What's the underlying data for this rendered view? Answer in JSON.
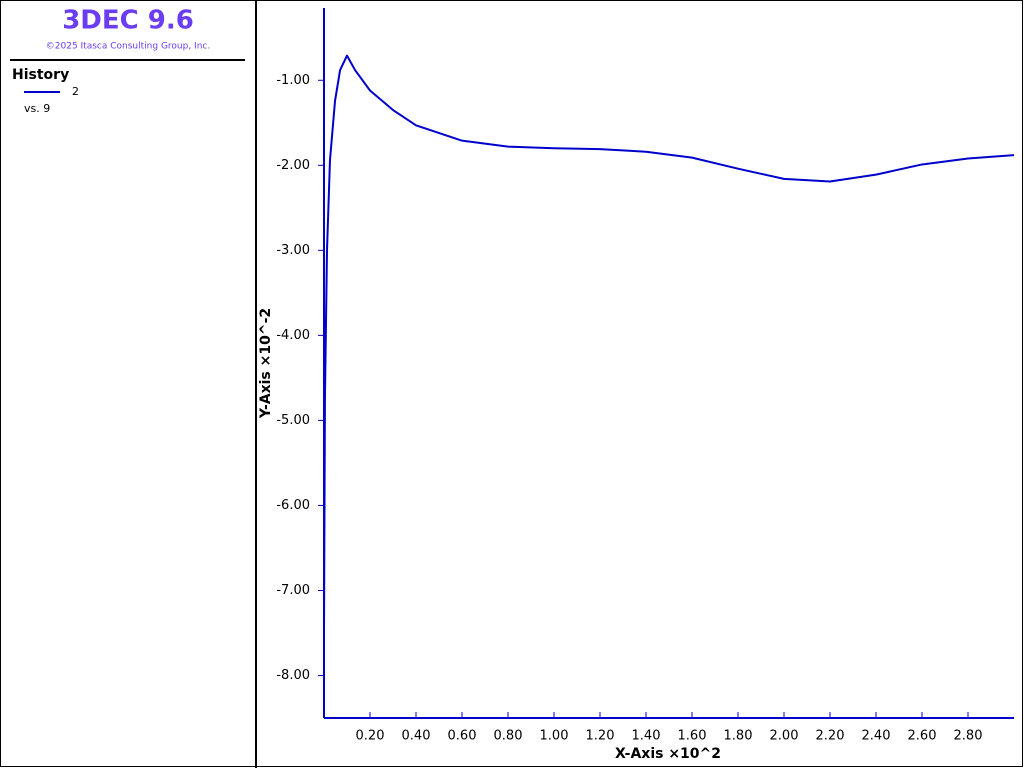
{
  "header": {
    "title": "3DEC 9.6",
    "copyright": "©2025 Itasca Consulting Group, Inc."
  },
  "legend": {
    "heading": "History",
    "note": "vs. 9"
  },
  "chart_data": {
    "type": "line",
    "xlabel": "X-Axis ×10^2",
    "ylabel": "Y-Axis ×10^-2",
    "x": [
      0,
      0.004,
      0.013,
      0.026,
      0.048,
      0.07,
      0.1,
      0.135,
      0.2,
      0.3,
      0.4,
      0.6,
      0.8,
      1.0,
      1.2,
      1.4,
      1.6,
      1.8,
      2.0,
      2.2,
      2.4,
      2.6,
      2.8,
      3.0
    ],
    "series": [
      {
        "name": "2",
        "color": "#0000cc",
        "values": [
          -7.47,
          -4.76,
          -3.0,
          -1.94,
          -1.24,
          -0.88,
          -0.71,
          -0.88,
          -1.12,
          -1.35,
          -1.53,
          -1.71,
          -1.78,
          -1.8,
          -1.81,
          -1.84,
          -1.91,
          -2.04,
          -2.16,
          -2.19,
          -2.11,
          -1.99,
          -1.92,
          -1.88
        ]
      }
    ],
    "xlim": [
      0,
      3.0
    ],
    "ylim": [
      -8.5,
      -0.15
    ],
    "xticks": [
      {
        "value": 0.2,
        "label": "0.20"
      },
      {
        "value": 0.4,
        "label": "0.40"
      },
      {
        "value": 0.6,
        "label": "0.60"
      },
      {
        "value": 0.8,
        "label": "0.80"
      },
      {
        "value": 1.0,
        "label": "1.00"
      },
      {
        "value": 1.2,
        "label": "1.20"
      },
      {
        "value": 1.4,
        "label": "1.40"
      },
      {
        "value": 1.6,
        "label": "1.60"
      },
      {
        "value": 1.8,
        "label": "1.80"
      },
      {
        "value": 2.0,
        "label": "2.00"
      },
      {
        "value": 2.2,
        "label": "2.20"
      },
      {
        "value": 2.4,
        "label": "2.40"
      },
      {
        "value": 2.6,
        "label": "2.60"
      },
      {
        "value": 2.8,
        "label": "2.80"
      }
    ],
    "yticks": [
      {
        "value": -1,
        "label": "-1.00"
      },
      {
        "value": -2,
        "label": "-2.00"
      },
      {
        "value": -3,
        "label": "-3.00"
      },
      {
        "value": -4,
        "label": "-4.00"
      },
      {
        "value": -5,
        "label": "-5.00"
      },
      {
        "value": -6,
        "label": "-6.00"
      },
      {
        "value": -7,
        "label": "-7.00"
      },
      {
        "value": -8,
        "label": "-8.00"
      }
    ],
    "grid": false
  }
}
